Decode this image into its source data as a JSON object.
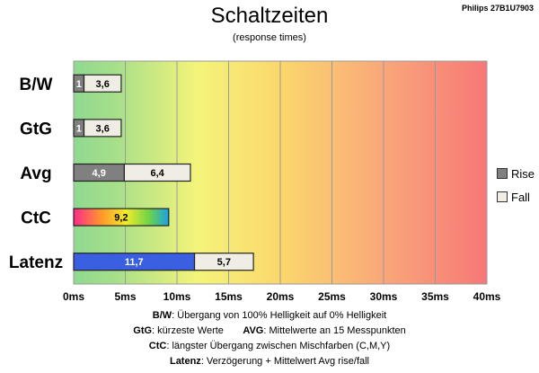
{
  "page": {
    "title": "Schaltzeiten",
    "subtitle": "(response times)",
    "model": "Philips 27B1U7903"
  },
  "legend": {
    "rise": "Rise",
    "fall": "Fall",
    "rise_color": "#808080",
    "fall_color": "#f0ede4"
  },
  "notes": [
    {
      "key": "B/W",
      "text": ":  Übergang von 100% Helligkeit auf 0% Helligkeit"
    },
    {
      "key": "GtG",
      "text": ": kürzeste  Werte",
      "key2": "AVG",
      "text2": ": Mittelwerte  an 15 Messpunkten"
    },
    {
      "key": "CtC",
      "text": ": längster Übergang  zwischen Mischfarben  (C,M,Y)"
    },
    {
      "key": "Latenz",
      "text": ": Verzögerung  + Mittelwert Avg rise/fall"
    }
  ],
  "chart_data": {
    "type": "bar",
    "orientation": "horizontal-stacked",
    "categories": [
      "B/W",
      "GtG",
      "Avg",
      "CtC",
      "Latenz"
    ],
    "series": [
      {
        "name": "Rise",
        "values": [
          1,
          1,
          4.9,
          null,
          11.7
        ],
        "labels": [
          "1",
          "1",
          "4,9",
          "",
          "11,7"
        ]
      },
      {
        "name": "Fall",
        "values": [
          3.6,
          3.6,
          6.4,
          null,
          5.7
        ],
        "labels": [
          "3,6",
          "3,6",
          "6,4",
          "",
          "5,7"
        ]
      }
    ],
    "ctc": {
      "value": 9.2,
      "label": "9,2"
    },
    "colors": {
      "rise": "#808080",
      "fall": "#f0ede4",
      "latency_rise": "#3a5fe0"
    },
    "xlim": [
      0,
      40
    ],
    "xticks": [
      "0ms",
      "5ms",
      "10ms",
      "15ms",
      "20ms",
      "25ms",
      "30ms",
      "35ms",
      "40ms"
    ],
    "grid": true,
    "background": "gradient green-yellow-red",
    "legend_position": "right"
  }
}
